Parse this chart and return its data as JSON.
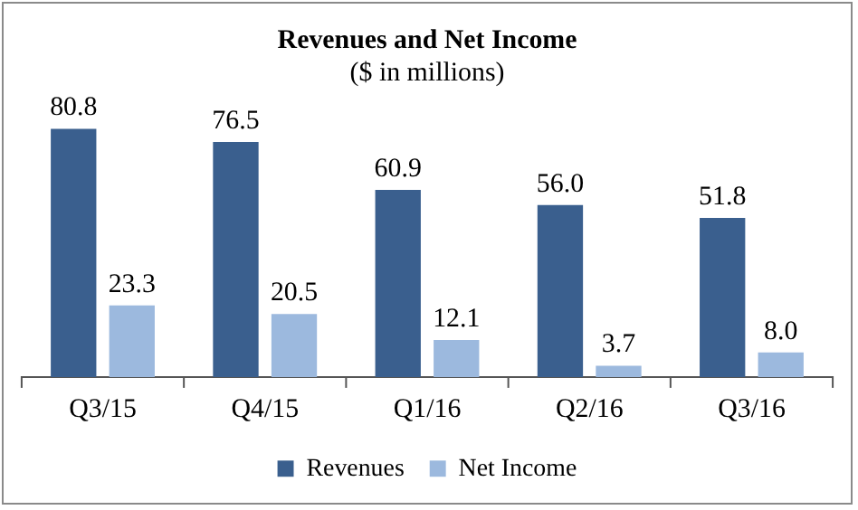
{
  "chart_data": {
    "type": "bar",
    "title": "Revenues and Net Income",
    "subtitle": "($ in millions)",
    "categories": [
      "Q3/15",
      "Q4/15",
      "Q1/16",
      "Q2/16",
      "Q3/16"
    ],
    "series": [
      {
        "name": "Revenues",
        "color": "#3a5f8e",
        "values": [
          80.8,
          76.5,
          60.9,
          56.0,
          51.8
        ],
        "value_labels": [
          "80.8",
          "76.5",
          "60.9",
          "56.0",
          "51.8"
        ]
      },
      {
        "name": "Net Income",
        "color": "#9cb9de",
        "values": [
          23.3,
          20.5,
          12.1,
          3.7,
          8.0
        ],
        "value_labels": [
          "23.3",
          "20.5",
          "12.1",
          "3.7",
          "8.0"
        ]
      }
    ],
    "legend": "bottom",
    "grid": false
  }
}
